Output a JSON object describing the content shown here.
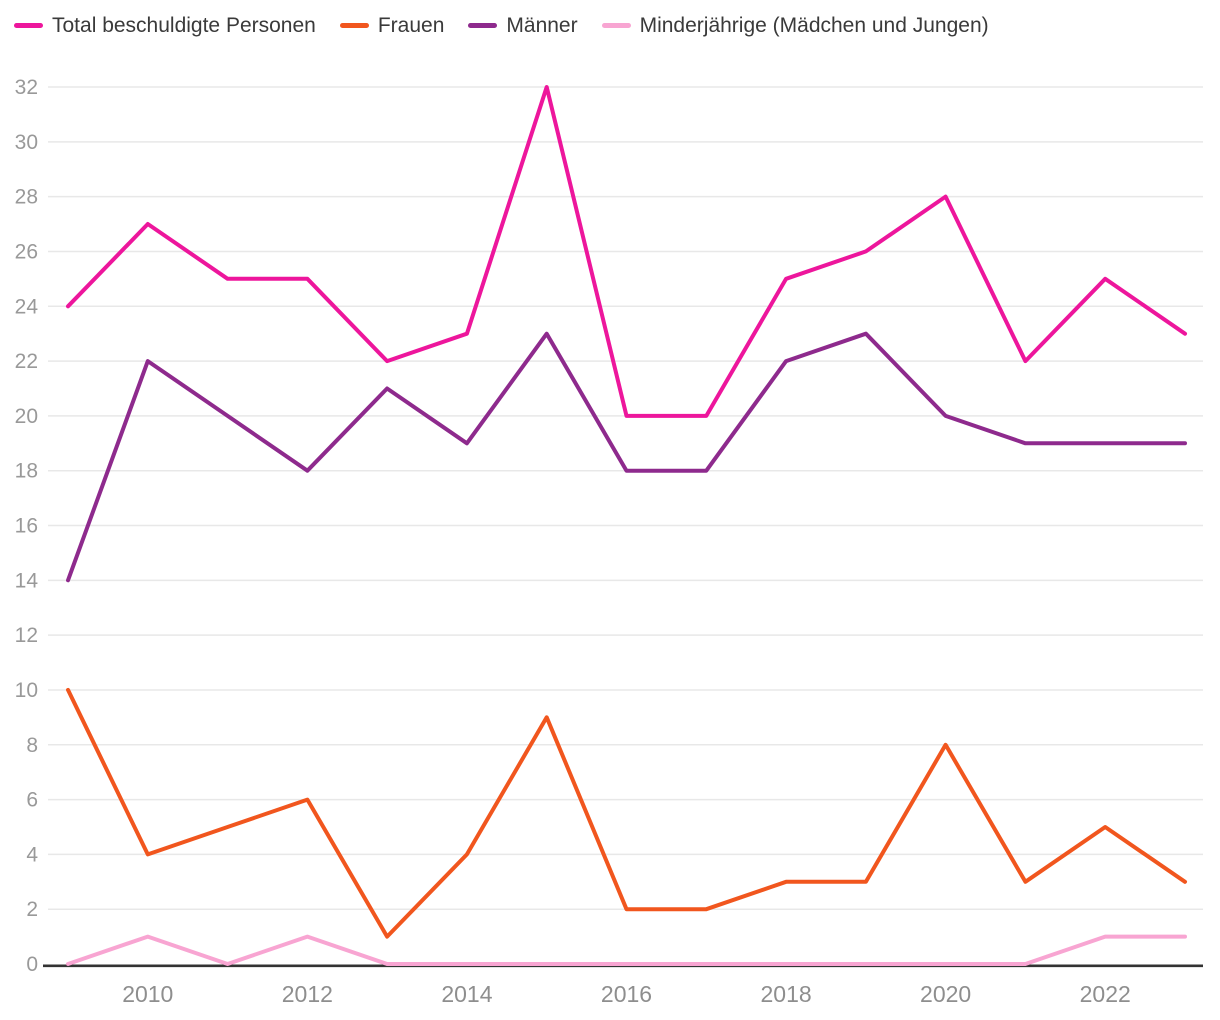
{
  "chart_data": {
    "type": "line",
    "x": [
      2009,
      2010,
      2011,
      2012,
      2013,
      2014,
      2015,
      2016,
      2017,
      2018,
      2019,
      2020,
      2021,
      2022,
      2023
    ],
    "series": [
      {
        "name": "Total beschuldigte Personen",
        "color": "#ED169C",
        "values": [
          24,
          27,
          25,
          25,
          22,
          23,
          32,
          20,
          20,
          25,
          26,
          28,
          22,
          25,
          23
        ]
      },
      {
        "name": "Frauen",
        "color": "#F1561E",
        "values": [
          10,
          4,
          5,
          6,
          1,
          4,
          9,
          2,
          2,
          3,
          3,
          8,
          3,
          5,
          3
        ]
      },
      {
        "name": "Männer",
        "color": "#8E2A8D",
        "values": [
          14,
          22,
          20,
          18,
          21,
          19,
          23,
          18,
          18,
          22,
          23,
          20,
          19,
          19,
          19
        ]
      },
      {
        "name": "Minderjährige (Mädchen und Jungen)",
        "color": "#F8A5D2",
        "values": [
          0,
          1,
          0,
          1,
          0,
          0,
          0,
          0,
          0,
          0,
          0,
          0,
          0,
          1,
          1
        ]
      }
    ],
    "ylim": [
      0,
      32
    ],
    "y_tick_step": 2,
    "y_tick_labels": [
      "0",
      "2",
      "4",
      "6",
      "8",
      "10",
      "12",
      "14",
      "16",
      "18",
      "20",
      "22",
      "24",
      "26",
      "28",
      "30",
      "32"
    ],
    "x_tick_labels": [
      "2010",
      "2012",
      "2014",
      "2016",
      "2018",
      "2020",
      "2022"
    ],
    "grid": true,
    "legend_position": "top-left"
  },
  "colors": {
    "background": "#FFFFFF",
    "grid": "#E8E8E8",
    "axis": "#333333",
    "y_tick_label": "#999999",
    "x_tick_label": "#8E8E8E",
    "legend_text": "#3A3A3A"
  }
}
